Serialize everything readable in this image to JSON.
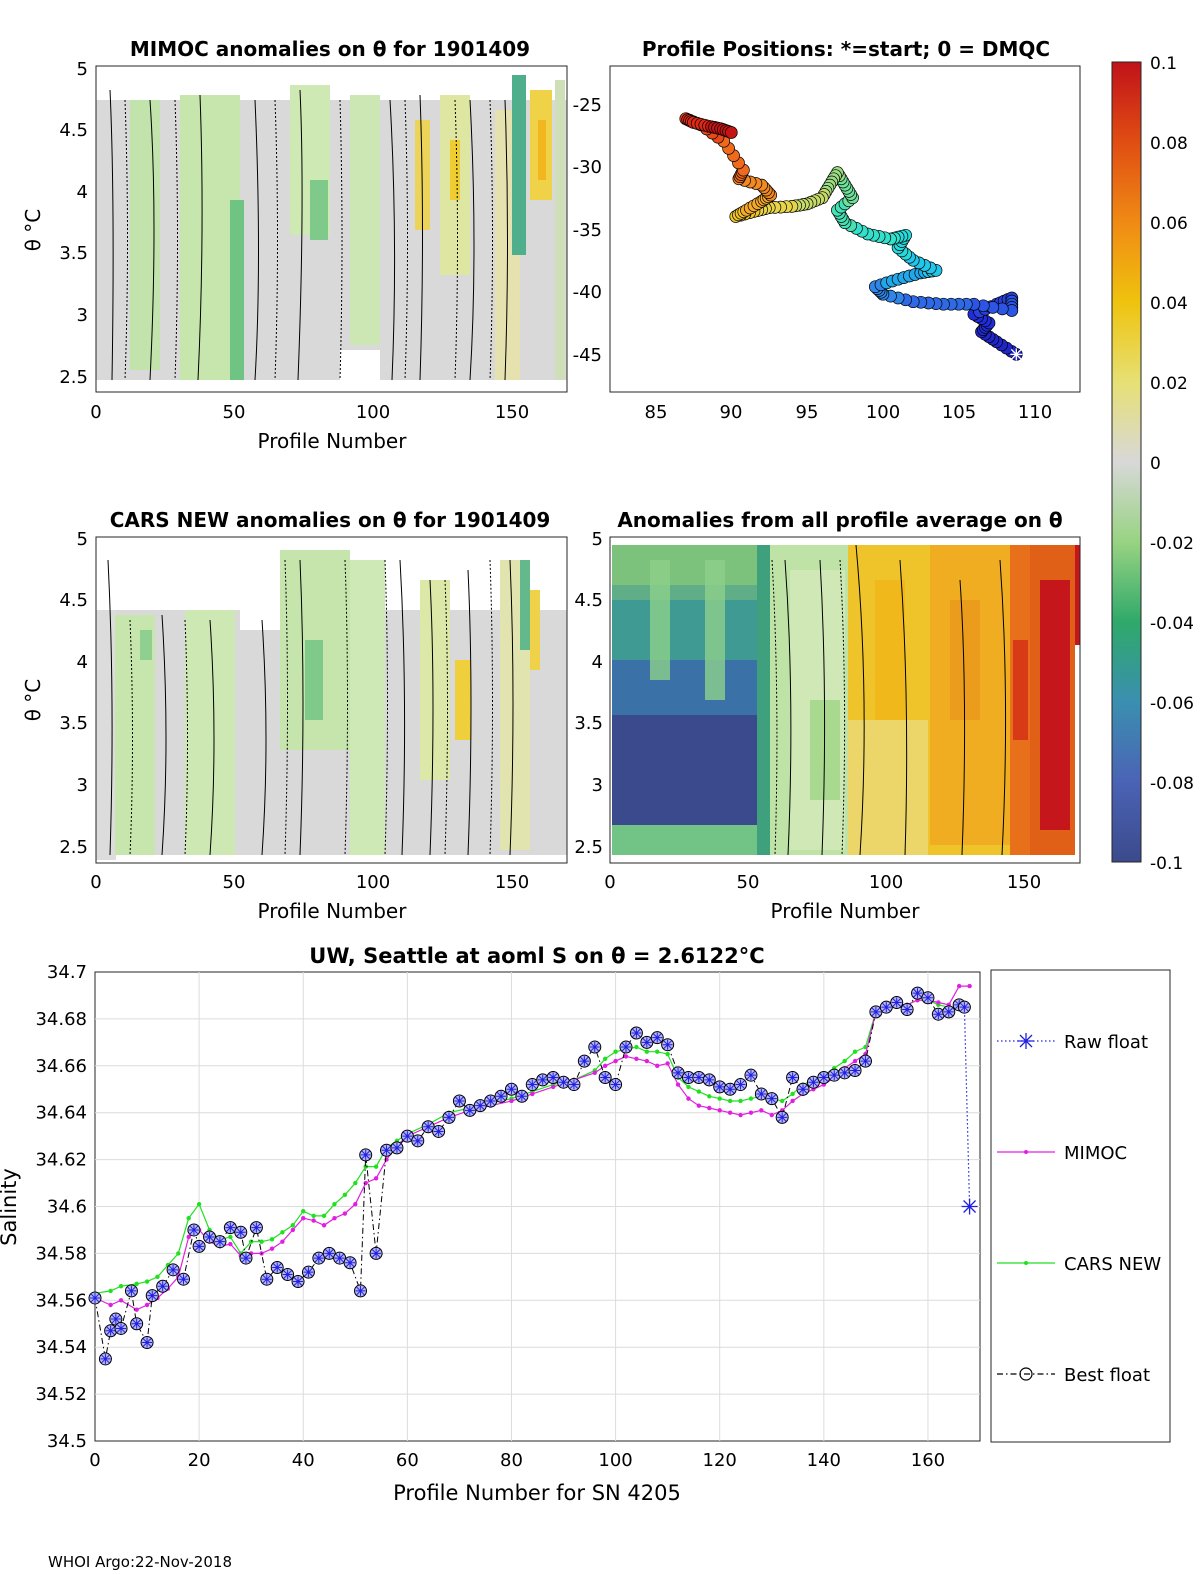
{
  "panels": {
    "mimoc": {
      "title": "MIMOC anomalies on θ  for 1901409",
      "ylabel": "θ °C",
      "xlabel": "Profile Number",
      "xticks": [
        "0",
        "50",
        "100",
        "150"
      ],
      "yticks": [
        "2.5",
        "3",
        "3.5",
        "4",
        "4.5",
        "5"
      ],
      "xlim": [
        0,
        170
      ],
      "ylim": [
        2.4,
        5.0
      ]
    },
    "positions": {
      "title": "Profile Positions: *=start; 0 = DMQC",
      "xticks": [
        "85",
        "90",
        "95",
        "100",
        "105",
        "110"
      ],
      "yticks": [
        "-25",
        "-30",
        "-35",
        "-40",
        "-45"
      ],
      "xlim": [
        82,
        113
      ],
      "ylim": [
        -48,
        -22
      ]
    },
    "cars": {
      "title": "CARS NEW anomalies on θ for 1901409",
      "ylabel": "θ °C",
      "xlabel": "Profile Number",
      "xticks": [
        "0",
        "50",
        "100",
        "150"
      ],
      "yticks": [
        "2.5",
        "3",
        "3.5",
        "4",
        "4.5",
        "5"
      ]
    },
    "allavg": {
      "title": "Anomalies from all profile average on θ",
      "xlabel": "Profile Number",
      "xticks": [
        "0",
        "50",
        "100",
        "150"
      ],
      "yticks": [
        "2.5",
        "3",
        "3.5",
        "4",
        "4.5",
        "5"
      ]
    }
  },
  "colorbar": {
    "ticks": [
      "0.1",
      "0.08",
      "0.06",
      "0.04",
      "0.02",
      "0",
      "-0.02",
      "-0.04",
      "-0.06",
      "-0.08",
      "-0.1"
    ]
  },
  "chart_data": {
    "type": "line",
    "title": "UW, Seattle at aoml S on θ = 2.6122°C",
    "xlabel": "Profile Number for SN 4205",
    "ylabel": "Salinity",
    "xlim": [
      0,
      170
    ],
    "ylim": [
      34.5,
      34.7
    ],
    "xticks": [
      "0",
      "20",
      "40",
      "60",
      "80",
      "100",
      "120",
      "140",
      "160"
    ],
    "yticks": [
      "34.5",
      "34.52",
      "34.54",
      "34.56",
      "34.58",
      "34.6",
      "34.62",
      "34.64",
      "34.66",
      "34.68",
      "34.7"
    ],
    "legend": {
      "placement": "right",
      "entries": [
        "Raw float",
        "MIMOC",
        "CARS NEW",
        "Best float"
      ]
    },
    "series": [
      {
        "name": "Best float",
        "x": [
          0,
          2,
          3,
          4,
          5,
          7,
          8,
          10,
          11,
          13,
          15,
          17,
          19,
          20,
          22,
          24,
          26,
          28,
          29,
          31,
          33,
          35,
          37,
          39,
          41,
          43,
          45,
          47,
          49,
          51,
          52,
          54,
          56,
          58,
          60,
          62,
          64,
          66,
          68,
          70,
          72,
          74,
          76,
          78,
          80,
          82,
          84,
          86,
          88,
          90,
          92,
          94,
          96,
          98,
          100,
          102,
          104,
          106,
          108,
          110,
          112,
          114,
          116,
          118,
          120,
          122,
          124,
          126,
          128,
          130,
          132,
          134,
          136,
          138,
          140,
          142,
          144,
          146,
          148,
          150,
          152,
          154,
          156,
          158,
          160,
          162,
          164,
          166,
          167
        ],
        "values": [
          34.561,
          34.535,
          34.547,
          34.552,
          34.548,
          34.564,
          34.55,
          34.542,
          34.562,
          34.566,
          34.573,
          34.569,
          34.59,
          34.583,
          34.587,
          34.585,
          34.591,
          34.589,
          34.578,
          34.591,
          34.569,
          34.574,
          34.571,
          34.568,
          34.572,
          34.578,
          34.58,
          34.578,
          34.576,
          34.564,
          34.622,
          34.58,
          34.624,
          34.625,
          34.63,
          34.628,
          34.634,
          34.632,
          34.638,
          34.645,
          34.641,
          34.643,
          34.645,
          34.647,
          34.65,
          34.647,
          34.652,
          34.654,
          34.655,
          34.653,
          34.652,
          34.662,
          34.668,
          34.655,
          34.652,
          34.668,
          34.674,
          34.67,
          34.672,
          34.669,
          34.657,
          34.655,
          34.655,
          34.654,
          34.651,
          34.65,
          34.652,
          34.656,
          34.648,
          34.646,
          34.638,
          34.655,
          34.65,
          34.653,
          34.655,
          34.656,
          34.657,
          34.658,
          34.662,
          34.683,
          34.685,
          34.687,
          34.684,
          34.691,
          34.689,
          34.682,
          34.683,
          34.686,
          34.685
        ]
      },
      {
        "name": "MIMOC",
        "x": [
          0,
          3,
          5,
          8,
          10,
          12,
          14,
          16,
          18,
          20,
          22,
          24,
          26,
          28,
          30,
          32,
          34,
          36,
          38,
          40,
          42,
          44,
          46,
          48,
          50,
          52,
          54,
          56,
          58,
          60,
          64,
          68,
          72,
          76,
          80,
          84,
          88,
          92,
          96,
          98,
          100,
          102,
          104,
          106,
          108,
          110,
          112,
          114,
          116,
          118,
          120,
          122,
          124,
          126,
          128,
          130,
          132,
          134,
          136,
          138,
          140,
          142,
          144,
          146,
          148,
          150,
          152,
          154,
          156,
          158,
          160,
          162,
          164,
          166,
          168
        ],
        "values": [
          34.561,
          34.558,
          34.56,
          34.556,
          34.558,
          34.561,
          34.565,
          34.57,
          34.587,
          34.59,
          34.585,
          34.583,
          34.584,
          34.579,
          34.58,
          34.58,
          34.582,
          34.585,
          34.59,
          34.595,
          34.594,
          34.592,
          34.595,
          34.597,
          34.601,
          34.61,
          34.612,
          34.62,
          34.626,
          34.63,
          34.634,
          34.638,
          34.641,
          34.643,
          34.645,
          34.648,
          34.651,
          34.654,
          34.657,
          34.66,
          34.662,
          34.664,
          34.663,
          34.662,
          34.66,
          34.661,
          34.652,
          34.646,
          34.643,
          34.642,
          34.641,
          34.64,
          34.639,
          34.64,
          34.641,
          34.639,
          34.641,
          34.645,
          34.648,
          34.65,
          34.652,
          34.655,
          34.659,
          34.662,
          34.665,
          34.683,
          34.685,
          34.686,
          34.686,
          34.688,
          34.688,
          34.687,
          34.686,
          34.694,
          34.694
        ]
      },
      {
        "name": "CARS NEW",
        "x": [
          0,
          3,
          5,
          8,
          10,
          12,
          14,
          16,
          18,
          20,
          22,
          24,
          26,
          28,
          30,
          32,
          34,
          36,
          38,
          40,
          42,
          44,
          46,
          48,
          50,
          52,
          54,
          56,
          58,
          60,
          64,
          68,
          72,
          76,
          80,
          84,
          88,
          92,
          96,
          98,
          100,
          102,
          104,
          106,
          108,
          110,
          112,
          114,
          116,
          118,
          120,
          122,
          124,
          126,
          128,
          130,
          132,
          134,
          136,
          138,
          140,
          142,
          144,
          146,
          148,
          150,
          152,
          154,
          156,
          158,
          160,
          162,
          164,
          166
        ],
        "values": [
          34.563,
          34.564,
          34.566,
          34.567,
          34.568,
          34.57,
          34.575,
          34.58,
          34.595,
          34.601,
          34.59,
          34.586,
          34.587,
          34.58,
          34.585,
          34.585,
          34.586,
          34.589,
          34.592,
          34.598,
          34.596,
          34.596,
          34.601,
          34.605,
          34.61,
          34.617,
          34.617,
          34.625,
          34.628,
          34.631,
          34.635,
          34.64,
          34.642,
          34.644,
          34.646,
          34.649,
          34.652,
          34.654,
          34.658,
          34.663,
          34.666,
          34.667,
          34.668,
          34.666,
          34.666,
          34.665,
          34.655,
          34.651,
          34.649,
          34.647,
          34.646,
          34.645,
          34.645,
          34.646,
          34.647,
          34.646,
          34.645,
          34.648,
          34.652,
          34.654,
          34.656,
          34.659,
          34.662,
          34.666,
          34.668,
          34.683,
          34.685,
          34.686,
          34.686,
          34.688,
          34.688,
          34.686,
          34.685,
          34.685
        ]
      },
      {
        "name": "Raw float",
        "x": [
          167,
          168
        ],
        "values": [
          34.685,
          34.6
        ]
      }
    ]
  },
  "footer": "WHOI Argo:22-Nov-2018"
}
